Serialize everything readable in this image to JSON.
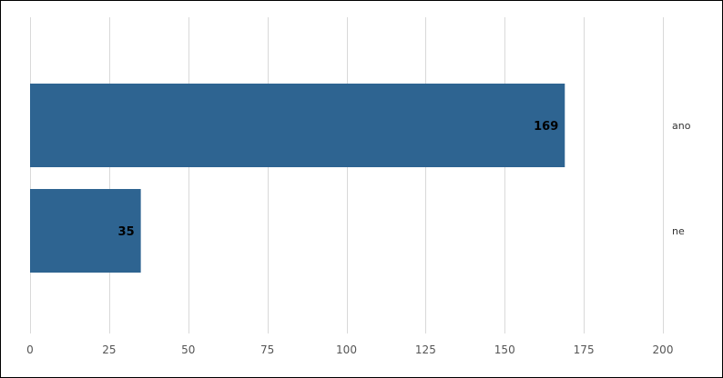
{
  "chart_data": {
    "type": "bar",
    "orientation": "horizontal",
    "categories": [
      "ano",
      "ne"
    ],
    "values": [
      169,
      35
    ],
    "xlim": [
      0,
      200
    ],
    "xticks": [
      0,
      25,
      50,
      75,
      100,
      125,
      150,
      175,
      200
    ],
    "grid": true,
    "bar_color": "#2E6491",
    "grid_color": "#D9D9D9",
    "title": "",
    "xlabel": "",
    "ylabel": ""
  }
}
